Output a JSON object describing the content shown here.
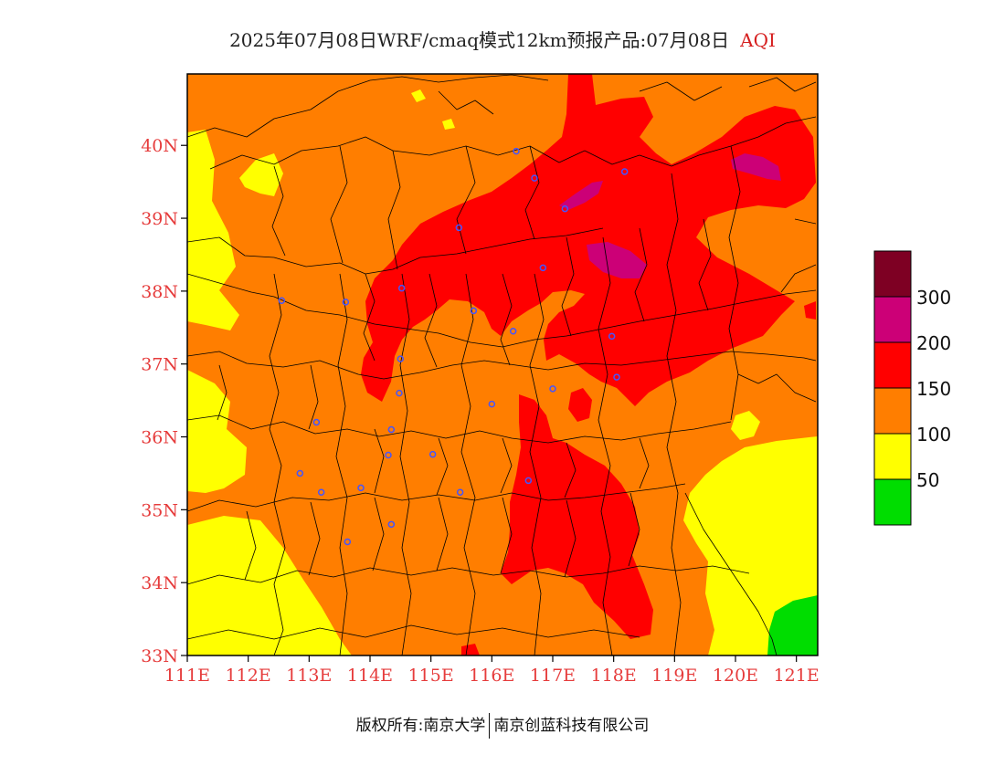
{
  "header": {
    "title": "2025年07月08日WRF/cmaq模式12km预报产品:07月08日",
    "variable": "AQI"
  },
  "map": {
    "lat_range": [
      33,
      40.98
    ],
    "lon_range": [
      111,
      121.35
    ],
    "lat_ticks": [
      {
        "value": 33,
        "label": "33N"
      },
      {
        "value": 34,
        "label": "34N"
      },
      {
        "value": 35,
        "label": "35N"
      },
      {
        "value": 36,
        "label": "36N"
      },
      {
        "value": 37,
        "label": "37N"
      },
      {
        "value": 38,
        "label": "38N"
      },
      {
        "value": 39,
        "label": "39N"
      },
      {
        "value": 40,
        "label": "40N"
      }
    ],
    "lon_ticks": [
      {
        "value": 111,
        "label": "111E"
      },
      {
        "value": 112,
        "label": "112E"
      },
      {
        "value": 113,
        "label": "113E"
      },
      {
        "value": 114,
        "label": "114E"
      },
      {
        "value": 115,
        "label": "115E"
      },
      {
        "value": 116,
        "label": "116E"
      },
      {
        "value": 117,
        "label": "117E"
      },
      {
        "value": 118,
        "label": "118E"
      },
      {
        "value": 119,
        "label": "119E"
      },
      {
        "value": 120,
        "label": "120E"
      },
      {
        "value": 121,
        "label": "121E"
      }
    ],
    "colors": {
      "good": "#00dd00",
      "moderate": "#ffff00",
      "usg": "#ff7e00",
      "unhealthy": "#ff0000",
      "very_unhealthy": "#cc0077",
      "hazardous": "#7e0023",
      "axis_text": "#e63c3c",
      "station": "#4455ff"
    },
    "stations": [
      {
        "lon": 116.4,
        "lat": 39.92
      },
      {
        "lon": 116.7,
        "lat": 39.55
      },
      {
        "lon": 117.2,
        "lat": 39.13
      },
      {
        "lon": 118.18,
        "lat": 39.64
      },
      {
        "lon": 115.46,
        "lat": 38.87
      },
      {
        "lon": 116.84,
        "lat": 38.32
      },
      {
        "lon": 114.52,
        "lat": 38.04
      },
      {
        "lon": 112.55,
        "lat": 37.87
      },
      {
        "lon": 113.6,
        "lat": 37.85
      },
      {
        "lon": 115.7,
        "lat": 37.73
      },
      {
        "lon": 116.35,
        "lat": 37.45
      },
      {
        "lon": 117.97,
        "lat": 37.38
      },
      {
        "lon": 114.5,
        "lat": 37.07
      },
      {
        "lon": 114.48,
        "lat": 36.6
      },
      {
        "lon": 116.0,
        "lat": 36.45
      },
      {
        "lon": 117.0,
        "lat": 36.66
      },
      {
        "lon": 118.05,
        "lat": 36.82
      },
      {
        "lon": 113.12,
        "lat": 36.2
      },
      {
        "lon": 114.35,
        "lat": 36.1
      },
      {
        "lon": 114.3,
        "lat": 35.75
      },
      {
        "lon": 115.03,
        "lat": 35.76
      },
      {
        "lon": 112.85,
        "lat": 35.5
      },
      {
        "lon": 113.2,
        "lat": 35.24
      },
      {
        "lon": 113.85,
        "lat": 35.3
      },
      {
        "lon": 115.48,
        "lat": 35.24
      },
      {
        "lon": 116.6,
        "lat": 35.4
      },
      {
        "lon": 114.35,
        "lat": 34.8
      },
      {
        "lon": 113.63,
        "lat": 34.56
      }
    ]
  },
  "legend": {
    "bins": [
      {
        "label": "50",
        "color": "#00dd00"
      },
      {
        "label": "100",
        "color": "#ffff00"
      },
      {
        "label": "150",
        "color": "#ff7e00"
      },
      {
        "label": "200",
        "color": "#ff0000"
      },
      {
        "label": "300",
        "color": "#cc0077"
      },
      {
        "label": "",
        "color": "#7e0023"
      }
    ]
  },
  "footer": {
    "left": "版权所有:南京大学",
    "right": "南京创蓝科技有限公司"
  }
}
